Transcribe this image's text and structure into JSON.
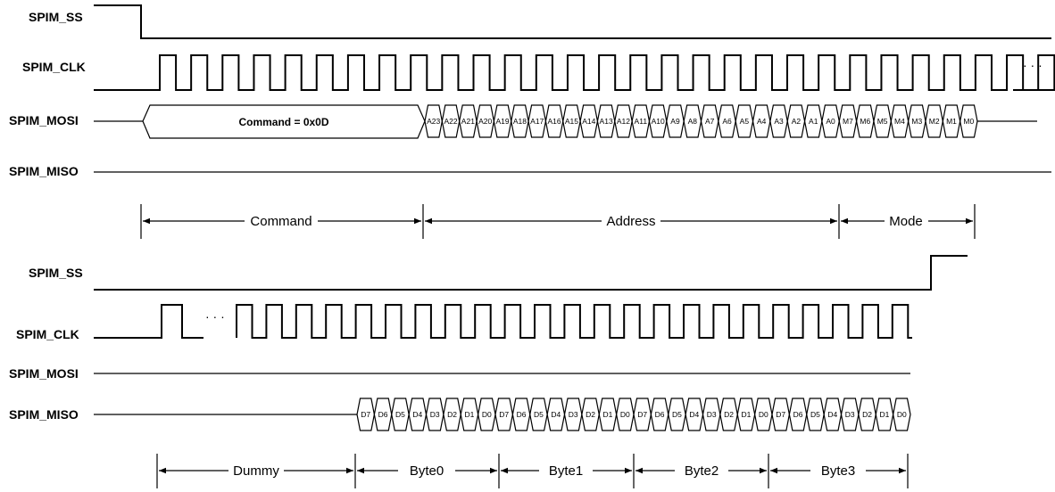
{
  "top": {
    "labels": {
      "ss": "SPIM_SS",
      "clk": "SPIM_CLK",
      "mosi": "SPIM_MOSI",
      "miso": "SPIM_MISO"
    },
    "command_text": "Command = 0x0D",
    "bits": [
      "A23",
      "A22",
      "A21",
      "A20",
      "A19",
      "A18",
      "A17",
      "A16",
      "A15",
      "A14",
      "A13",
      "A12",
      "A11",
      "A10",
      "A9",
      "A8",
      "A7",
      "A6",
      "A5",
      "A4",
      "A3",
      "A2",
      "A1",
      "A0",
      "M7",
      "M6",
      "M5",
      "M4",
      "M3",
      "M2",
      "M1",
      "M0"
    ],
    "continuation": "· · ·",
    "spans": [
      "Command",
      "Address",
      "Mode"
    ]
  },
  "bottom": {
    "labels": {
      "ss": "SPIM_SS",
      "clk": "SPIM_CLK",
      "mosi": "SPIM_MOSI",
      "miso": "SPIM_MISO"
    },
    "bits": [
      "D7",
      "D6",
      "D5",
      "D4",
      "D3",
      "D2",
      "D1",
      "D0",
      "D7",
      "D6",
      "D5",
      "D4",
      "D3",
      "D2",
      "D1",
      "D0",
      "D7",
      "D6",
      "D5",
      "D4",
      "D3",
      "D2",
      "D1",
      "D0",
      "D7",
      "D6",
      "D5",
      "D4",
      "D3",
      "D2",
      "D1",
      "D0"
    ],
    "continuation": "· · ·",
    "spans": [
      "Dummy",
      "Byte0",
      "Byte1",
      "Byte2",
      "Byte3"
    ]
  }
}
